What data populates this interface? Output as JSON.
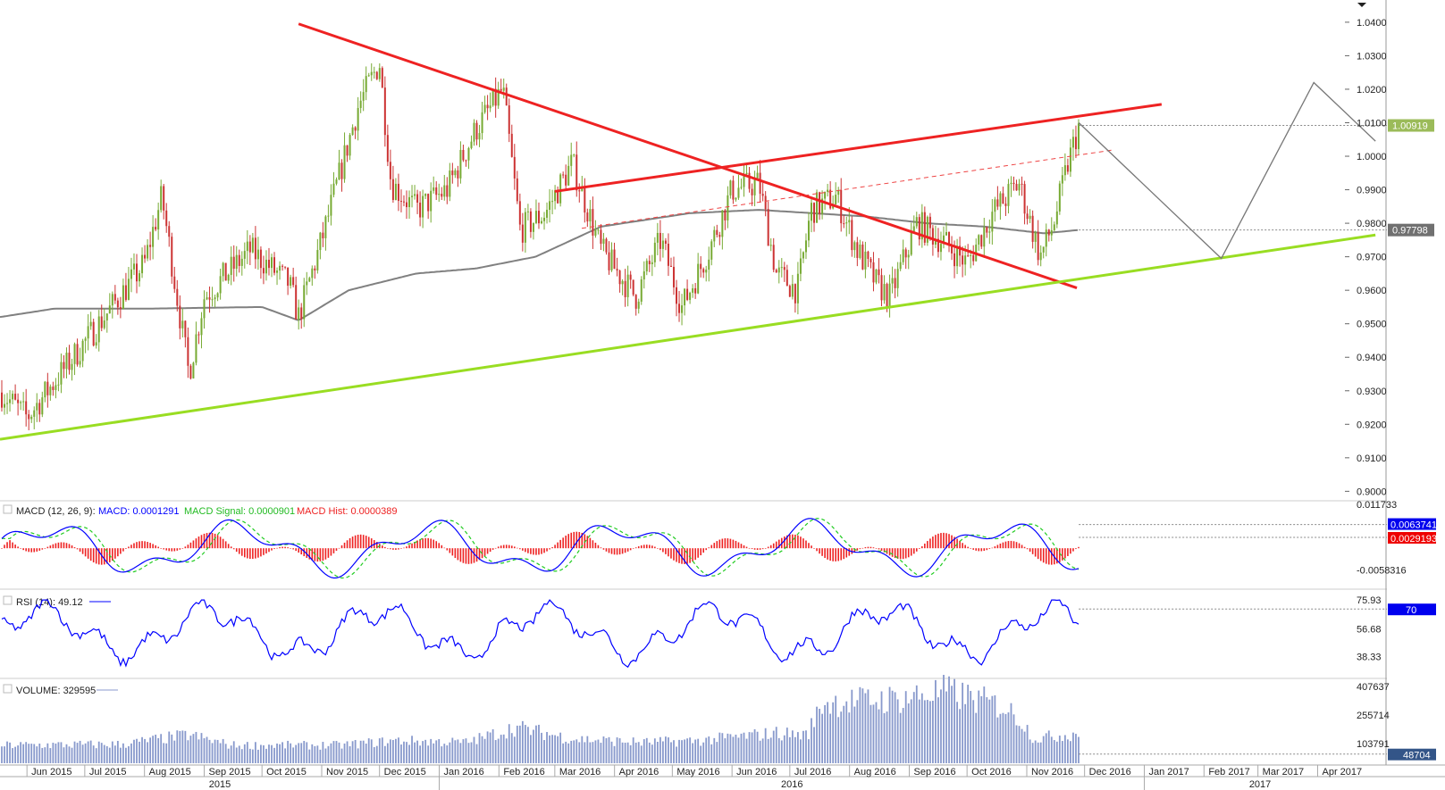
{
  "chart_data": {
    "type": "candlestick",
    "symbol_menu_icon": "dropdown-triangle-icon",
    "price_axis": {
      "ticks": [
        "1.0400",
        "1.0300",
        "1.0200",
        "1.0100",
        "1.0000",
        "0.9900",
        "0.9800",
        "0.9700",
        "0.9600",
        "0.9500",
        "0.9400",
        "0.9300",
        "0.9200",
        "0.9100",
        "0.9000"
      ],
      "ylim": [
        0.8985,
        1.0445
      ],
      "last_price_label": "1.00919",
      "last_price": 1.00919,
      "ma_label": "0.97798",
      "ma_value": 0.97798
    },
    "time_axis": {
      "months": [
        "Jun 2015",
        "Jul 2015",
        "Aug 2015",
        "Sep 2015",
        "Oct 2015",
        "Nov 2015",
        "Dec 2015",
        "Jan 2016",
        "Feb 2016",
        "Mar 2016",
        "Apr 2016",
        "May 2016",
        "Jun 2016",
        "Jul 2016",
        "Aug 2016",
        "Sep 2016",
        "Oct 2016",
        "Nov 2016",
        "Dec 2016",
        "Jan 2017",
        "Feb 2017",
        "Mar 2017",
        "Apr 2017"
      ],
      "years": [
        "2015",
        "2016",
        "2017"
      ]
    },
    "price_anchors": [
      {
        "date": "2015-05-18",
        "v": 0.93
      },
      {
        "date": "2015-06-01",
        "v": 0.922
      },
      {
        "date": "2015-06-25",
        "v": 0.94
      },
      {
        "date": "2015-07-15",
        "v": 0.955
      },
      {
        "date": "2015-08-01",
        "v": 0.968
      },
      {
        "date": "2015-08-10",
        "v": 0.988
      },
      {
        "date": "2015-08-24",
        "v": 0.935
      },
      {
        "date": "2015-09-01",
        "v": 0.958
      },
      {
        "date": "2015-09-25",
        "v": 0.972
      },
      {
        "date": "2015-10-15",
        "v": 0.962
      },
      {
        "date": "2015-10-20",
        "v": 0.952
      },
      {
        "date": "2015-11-01",
        "v": 0.975
      },
      {
        "date": "2015-11-20",
        "v": 1.015
      },
      {
        "date": "2015-12-01",
        "v": 1.028
      },
      {
        "date": "2015-12-07",
        "v": 0.992
      },
      {
        "date": "2015-12-20",
        "v": 0.984
      },
      {
        "date": "2016-01-05",
        "v": 0.99
      },
      {
        "date": "2016-01-20",
        "v": 1.008
      },
      {
        "date": "2016-02-03",
        "v": 1.02
      },
      {
        "date": "2016-02-12",
        "v": 0.978
      },
      {
        "date": "2016-02-25",
        "v": 0.983
      },
      {
        "date": "2016-03-10",
        "v": 0.998
      },
      {
        "date": "2016-03-25",
        "v": 0.972
      },
      {
        "date": "2016-04-12",
        "v": 0.958
      },
      {
        "date": "2016-04-25",
        "v": 0.975
      },
      {
        "date": "2016-05-06",
        "v": 0.955
      },
      {
        "date": "2016-05-20",
        "v": 0.972
      },
      {
        "date": "2016-06-01",
        "v": 0.99
      },
      {
        "date": "2016-06-15",
        "v": 0.992
      },
      {
        "date": "2016-06-24",
        "v": 0.965
      },
      {
        "date": "2016-07-05",
        "v": 0.96
      },
      {
        "date": "2016-07-12",
        "v": 0.984
      },
      {
        "date": "2016-07-25",
        "v": 0.988
      },
      {
        "date": "2016-08-05",
        "v": 0.972
      },
      {
        "date": "2016-08-15",
        "v": 0.962
      },
      {
        "date": "2016-08-22",
        "v": 0.958
      },
      {
        "date": "2016-09-05",
        "v": 0.98
      },
      {
        "date": "2016-09-20",
        "v": 0.974
      },
      {
        "date": "2016-10-01",
        "v": 0.968
      },
      {
        "date": "2016-10-14",
        "v": 0.983
      },
      {
        "date": "2016-10-28",
        "v": 0.992
      },
      {
        "date": "2016-11-08",
        "v": 0.97
      },
      {
        "date": "2016-11-15",
        "v": 0.98
      },
      {
        "date": "2016-11-22",
        "v": 0.997
      },
      {
        "date": "2016-11-28",
        "v": 1.009
      }
    ],
    "moving_average_anchors": [
      {
        "date": "2015-05-18",
        "v": 0.952
      },
      {
        "date": "2015-06-15",
        "v": 0.9545
      },
      {
        "date": "2015-08-01",
        "v": 0.9545
      },
      {
        "date": "2015-10-01",
        "v": 0.955
      },
      {
        "date": "2015-10-20",
        "v": 0.951
      },
      {
        "date": "2015-11-15",
        "v": 0.96
      },
      {
        "date": "2015-12-20",
        "v": 0.965
      },
      {
        "date": "2016-01-20",
        "v": 0.9665
      },
      {
        "date": "2016-02-20",
        "v": 0.97
      },
      {
        "date": "2016-03-25",
        "v": 0.979
      },
      {
        "date": "2016-05-10",
        "v": 0.983
      },
      {
        "date": "2016-06-15",
        "v": 0.984
      },
      {
        "date": "2016-08-10",
        "v": 0.982
      },
      {
        "date": "2016-09-10",
        "v": 0.98
      },
      {
        "date": "2016-10-10",
        "v": 0.979
      },
      {
        "date": "2016-11-10",
        "v": 0.977
      },
      {
        "date": "2016-11-28",
        "v": 0.978
      }
    ],
    "trendlines": [
      {
        "name": "upper-resistance",
        "color": "#ee2222",
        "width": 3,
        "dash": false,
        "p1": {
          "date": "2016-03-01",
          "v": 0.9895
        },
        "p2": {
          "date": "2017-01-10",
          "v": 1.0155
        }
      },
      {
        "name": "descending-resistance",
        "color": "#ee2222",
        "width": 3,
        "dash": false,
        "p1": {
          "date": "2015-10-20",
          "v": 1.0395
        },
        "p2": {
          "date": "2016-11-27",
          "v": 0.9607
        }
      },
      {
        "name": "dashed-channel",
        "color": "#ee4444",
        "width": 1,
        "dash": true,
        "p1": {
          "date": "2016-03-15",
          "v": 0.9785
        },
        "p2": {
          "date": "2016-12-15",
          "v": 1.0018
        }
      },
      {
        "name": "ascending-support",
        "color": "#99dd22",
        "width": 3,
        "dash": false,
        "p1": {
          "date": "2015-05-18",
          "v": 0.9155
        },
        "p2": {
          "date": "2017-05-01",
          "v": 0.9765
        }
      }
    ],
    "projection_path": [
      {
        "date": "2016-11-28",
        "v": 1.01
      },
      {
        "date": "2017-02-10",
        "v": 0.9695
      },
      {
        "date": "2017-03-30",
        "v": 1.022
      },
      {
        "date": "2017-05-01",
        "v": 1.0045
      }
    ],
    "macd": {
      "label": "MACD (12, 26, 9):",
      "macd_label": "MACD: 0.0001291",
      "signal_label": "MACD Signal: 0.0000901",
      "hist_label": "MACD Hist: 0.0000389",
      "ticks": [
        "0.011733",
        "-0.0058316"
      ],
      "tick_values": [
        0.011733,
        -0.0058316
      ],
      "ylim": [
        -0.0105,
        0.0125
      ],
      "value_label_1": "0.0063741",
      "value_1": 0.0063741,
      "value_label_2": "0.0029193",
      "value_2": 0.0029193,
      "colors": {
        "macd": "#0000ff",
        "signal": "#22cc22",
        "hist": "#ee2222"
      }
    },
    "rsi": {
      "label": "RSI (14): 49.12",
      "ticks": [
        "75.93",
        "56.68",
        "38.33"
      ],
      "tick_values": [
        75.93,
        56.68,
        38.33
      ],
      "ylim": [
        25,
        82
      ],
      "level_label": "70",
      "level": 70,
      "color": "#0000ff"
    },
    "volume": {
      "label": "VOLUME: 329595",
      "ticks": [
        "407637",
        "255714",
        "103791"
      ],
      "tick_values": [
        407637,
        255714,
        103791
      ],
      "ylim": [
        0,
        440000
      ],
      "last_label": "48704",
      "last_value": 48704,
      "color": "#8899cc",
      "anchors": [
        {
          "date": "2015-05-18",
          "v": 95000
        },
        {
          "date": "2015-07-20",
          "v": 100000
        },
        {
          "date": "2015-08-24",
          "v": 150000
        },
        {
          "date": "2015-09-15",
          "v": 95000
        },
        {
          "date": "2015-11-10",
          "v": 95000
        },
        {
          "date": "2015-12-10",
          "v": 120000
        },
        {
          "date": "2016-01-15",
          "v": 110000
        },
        {
          "date": "2016-02-10",
          "v": 190000
        },
        {
          "date": "2016-03-10",
          "v": 130000
        },
        {
          "date": "2016-04-15",
          "v": 110000
        },
        {
          "date": "2016-05-15",
          "v": 120000
        },
        {
          "date": "2016-06-24",
          "v": 160000
        },
        {
          "date": "2016-07-10",
          "v": 150000
        },
        {
          "date": "2016-07-18",
          "v": 320000
        },
        {
          "date": "2016-08-25",
          "v": 340000
        },
        {
          "date": "2016-09-20",
          "v": 380000
        },
        {
          "date": "2016-10-20",
          "v": 300000
        },
        {
          "date": "2016-10-28",
          "v": 240000
        },
        {
          "date": "2016-11-05",
          "v": 130000
        },
        {
          "date": "2016-11-28",
          "v": 160000
        }
      ]
    },
    "colors": {
      "up": "#77aa33",
      "down": "#cc3333",
      "ma": "#808080",
      "projection": "#777777",
      "last_price_bg": "#9bbb59",
      "ma_label_bg": "#707070"
    }
  }
}
